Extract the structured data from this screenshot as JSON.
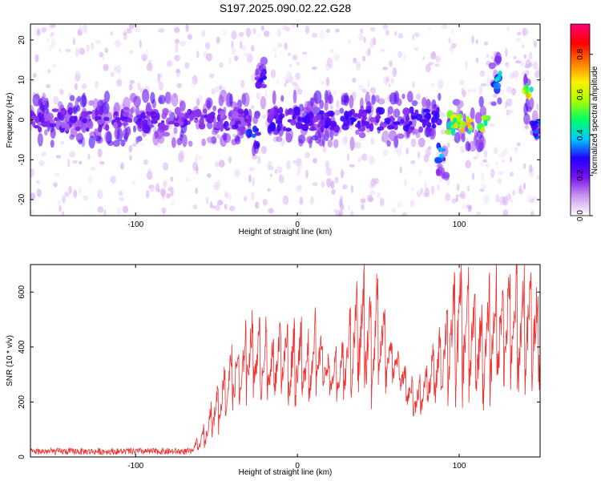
{
  "title": "S197.2025.090.02.22.G28",
  "chart_data": [
    {
      "type": "heatmap",
      "xlabel": "Height of straight line (km)",
      "ylabel": "Frequency (Hz)",
      "xlim": [
        -165,
        150
      ],
      "ylim": [
        -24,
        24
      ],
      "xticks": [
        -100,
        0,
        100
      ],
      "yticks": [
        -20,
        -10,
        0,
        10,
        20
      ],
      "colorbar": {
        "label": "Normalized spectral amplitude",
        "range": [
          0,
          0.95
        ],
        "ticks": [
          "0.0",
          "0.2",
          "0.4",
          "0.6",
          "0.8"
        ],
        "colormap": [
          "#ffffff",
          "#cc99ee",
          "#7711ee",
          "#2200ff",
          "#00ccff",
          "#00ff66",
          "#aaff00",
          "#ffee00",
          "#ff7700",
          "#ff0000",
          "#ff0077"
        ]
      },
      "ridges": [
        {
          "x": [
            -165,
            -30
          ],
          "y": 0,
          "amp": 0.25
        },
        {
          "x": [
            -25,
            -20
          ],
          "y": 10,
          "amp": 0.3
        },
        {
          "x": [
            -30,
            -24
          ],
          "y": -4,
          "amp": 0.35
        },
        {
          "x": [
            -18,
            88
          ],
          "y": 0,
          "amp": 0.3
        },
        {
          "x": [
            86,
            92
          ],
          "y": -9,
          "amp": 0.4
        },
        {
          "x": [
            93,
            118
          ],
          "y": -1,
          "amp": 0.75
        },
        {
          "x": [
            120,
            126
          ],
          "y": 10,
          "amp": 0.45
        },
        {
          "x": [
            140,
            145
          ],
          "y": 6,
          "amp": 0.75
        },
        {
          "x": [
            145,
            150
          ],
          "y": -3,
          "amp": 0.35
        }
      ]
    },
    {
      "type": "line",
      "xlabel": "Height of straight line (km)",
      "ylabel": "SNR (10 * v/v)",
      "xlim": [
        -165,
        150
      ],
      "ylim": [
        0,
        700
      ],
      "xticks": [
        -100,
        0,
        100
      ],
      "yticks": [
        0,
        200,
        400,
        600
      ],
      "color": "#ee3333",
      "series": [
        {
          "x": [
            -165,
            -140,
            -120,
            -100,
            -80,
            -65,
            -60,
            -55,
            -50,
            -45,
            -40,
            -35,
            -30,
            -25,
            -20,
            -15,
            -10,
            -5,
            0,
            5,
            10,
            15,
            20,
            25,
            30,
            35,
            40,
            45,
            50,
            55,
            60,
            65,
            70,
            75,
            80,
            85,
            90,
            95,
            100,
            105,
            110,
            115,
            120,
            125,
            130,
            135,
            140,
            145,
            150
          ],
          "envelope_max": [
            35,
            35,
            35,
            35,
            35,
            40,
            80,
            160,
            250,
            330,
            420,
            390,
            540,
            470,
            500,
            420,
            500,
            460,
            510,
            420,
            520,
            440,
            360,
            380,
            450,
            590,
            680,
            600,
            690,
            460,
            410,
            340,
            290,
            280,
            330,
            430,
            510,
            630,
            690,
            630,
            600,
            560,
            620,
            660,
            690,
            680,
            670,
            660,
            650
          ],
          "envelope_min": [
            5,
            5,
            5,
            5,
            5,
            8,
            10,
            30,
            50,
            80,
            100,
            120,
            140,
            160,
            100,
            160,
            180,
            90,
            120,
            150,
            100,
            200,
            170,
            160,
            170,
            120,
            90,
            100,
            140,
            200,
            250,
            190,
            130,
            70,
            150,
            100,
            160,
            100,
            80,
            110,
            130,
            90,
            130,
            120,
            150,
            110,
            130,
            140,
            150
          ]
        }
      ]
    }
  ]
}
